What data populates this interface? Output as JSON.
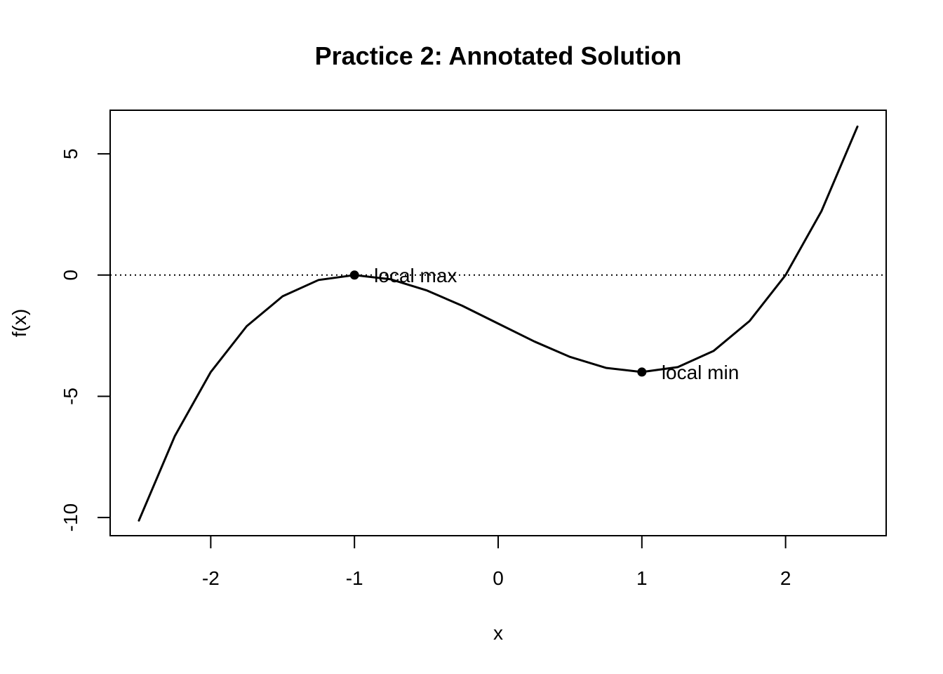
{
  "chart_data": {
    "type": "line",
    "title": "Practice 2: Annotated Solution",
    "xlabel": "x",
    "ylabel": "f(x)",
    "xlim": [
      -2.7,
      2.7
    ],
    "ylim": [
      -10.75,
      6.8
    ],
    "x_ticks": [
      -2,
      -1,
      0,
      1,
      2
    ],
    "x_tick_labels": [
      "-2",
      "-1",
      "0",
      "1",
      "2"
    ],
    "y_ticks": [
      -10,
      -5,
      0,
      5
    ],
    "y_tick_labels": [
      "-10",
      "-5",
      "0",
      "5"
    ],
    "grid": false,
    "series": [
      {
        "x": [
          -2.5,
          -2.25,
          -2.0,
          -1.75,
          -1.5,
          -1.25,
          -1.0,
          -0.75,
          -0.5,
          -0.25,
          0.0,
          0.25,
          0.5,
          0.75,
          1.0,
          1.25,
          1.5,
          1.75,
          2.0,
          2.25,
          2.5
        ],
        "y": [
          -10.125,
          -6.64,
          -4.0,
          -2.109,
          -0.875,
          -0.203,
          0.0,
          -0.172,
          -0.625,
          -1.266,
          -2.0,
          -2.734,
          -3.375,
          -3.828,
          -4.0,
          -3.797,
          -3.125,
          -1.891,
          0.0,
          2.641,
          6.125
        ],
        "color": "#000000"
      }
    ],
    "reference_lines": [
      {
        "orientation": "horizontal",
        "y": 0,
        "style": "dotted",
        "color": "#000000"
      }
    ],
    "points": [
      {
        "x": -1,
        "y": 0,
        "label": "local max"
      },
      {
        "x": 1,
        "y": -4,
        "label": "local min"
      }
    ]
  }
}
